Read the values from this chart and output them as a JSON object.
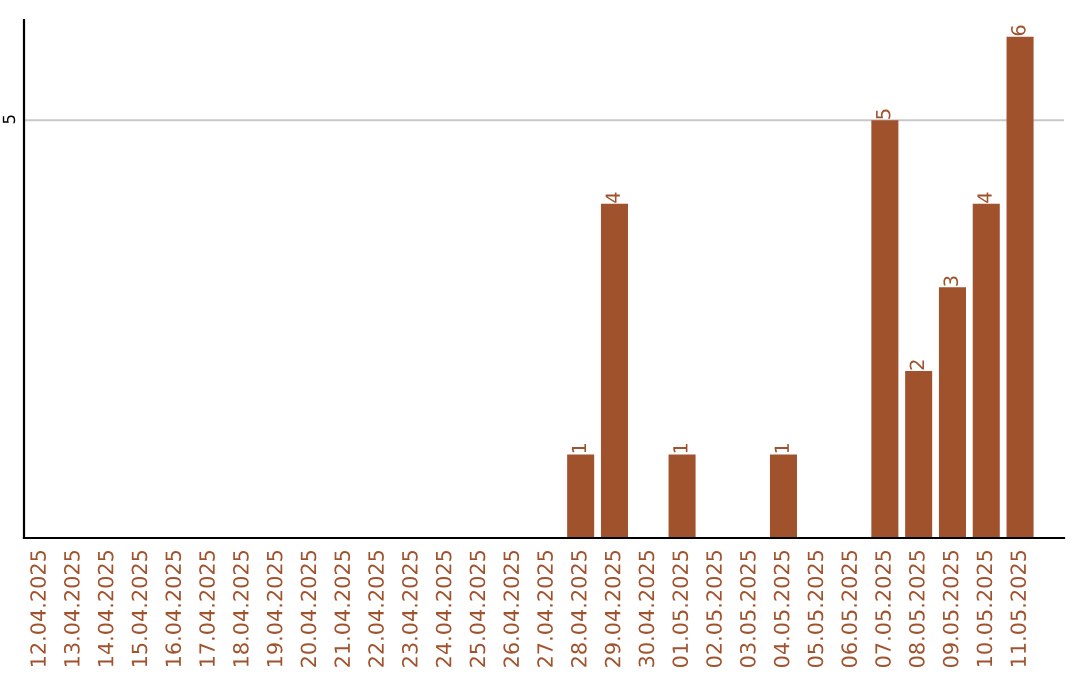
{
  "chart_data": {
    "type": "bar",
    "categories": [
      "12.04.2025",
      "13.04.2025",
      "14.04.2025",
      "15.04.2025",
      "16.04.2025",
      "17.04.2025",
      "18.04.2025",
      "19.04.2025",
      "20.04.2025",
      "21.04.2025",
      "22.04.2025",
      "23.04.2025",
      "24.04.2025",
      "25.04.2025",
      "26.04.2025",
      "27.04.2025",
      "28.04.2025",
      "29.04.2025",
      "30.04.2025",
      "01.05.2025",
      "02.05.2025",
      "03.05.2025",
      "04.05.2025",
      "05.05.2025",
      "06.05.2025",
      "07.05.2025",
      "08.05.2025",
      "09.05.2025",
      "10.05.2025",
      "11.05.2025"
    ],
    "values": [
      null,
      null,
      null,
      null,
      null,
      null,
      null,
      null,
      null,
      null,
      null,
      null,
      null,
      null,
      null,
      null,
      1,
      4,
      null,
      1,
      null,
      null,
      1,
      null,
      null,
      5,
      2,
      3,
      4,
      6
    ],
    "data_labels": true,
    "color": "#a0522d",
    "ylim": [
      0,
      6.2
    ],
    "yticks": [
      5
    ],
    "grid": "y"
  }
}
